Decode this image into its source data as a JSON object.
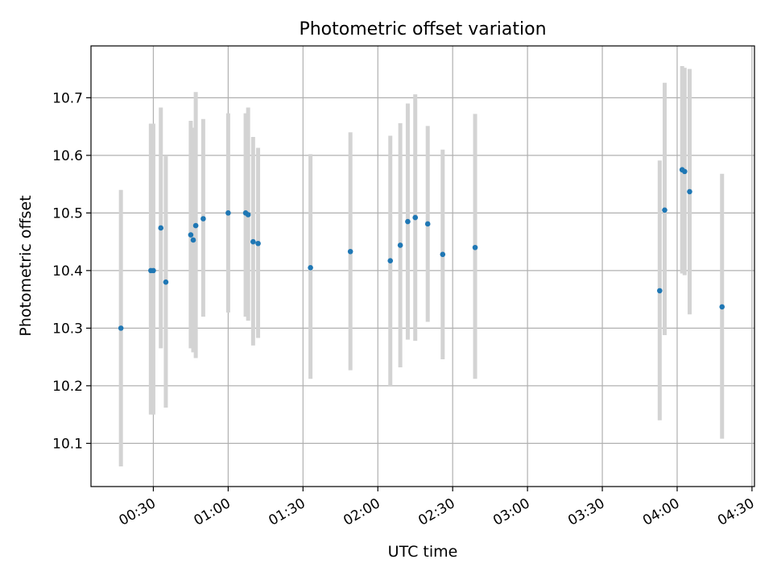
{
  "chart_data": {
    "type": "scatter",
    "title": "Photometric offset variation",
    "xlabel": "UTC time",
    "ylabel": "Photometric offset",
    "x_unit": "UTC",
    "xlim": [
      "00:05",
      "04:31"
    ],
    "ylim": [
      10.025,
      10.79
    ],
    "grid": true,
    "x_ticks": [
      "00:30",
      "01:00",
      "01:30",
      "02:00",
      "02:30",
      "03:00",
      "03:30",
      "04:00",
      "04:30"
    ],
    "y_ticks": [
      10.1,
      10.2,
      10.3,
      10.4,
      10.5,
      10.6,
      10.7
    ],
    "y_tick_labels": [
      "10.1",
      "10.2",
      "10.3",
      "10.4",
      "10.5",
      "10.6",
      "10.7"
    ],
    "marker_color": "#1f77b4",
    "errorbar_color": "#d3d3d3",
    "points": [
      {
        "x": "00:17",
        "y": 10.3,
        "low": 10.06,
        "high": 10.54
      },
      {
        "x": "00:29",
        "y": 10.4,
        "low": 10.15,
        "high": 10.655
      },
      {
        "x": "00:30",
        "y": 10.4,
        "low": 10.15,
        "high": 10.655
      },
      {
        "x": "00:33",
        "y": 10.474,
        "low": 10.265,
        "high": 10.683
      },
      {
        "x": "00:35",
        "y": 10.38,
        "low": 10.162,
        "high": 10.6
      },
      {
        "x": "00:45",
        "y": 10.462,
        "low": 10.265,
        "high": 10.66
      },
      {
        "x": "00:46",
        "y": 10.453,
        "low": 10.258,
        "high": 10.648
      },
      {
        "x": "00:47",
        "y": 10.478,
        "low": 10.248,
        "high": 10.71
      },
      {
        "x": "00:50",
        "y": 10.49,
        "low": 10.32,
        "high": 10.663
      },
      {
        "x": "01:00",
        "y": 10.5,
        "low": 10.327,
        "high": 10.673
      },
      {
        "x": "01:07",
        "y": 10.5,
        "low": 10.32,
        "high": 10.673
      },
      {
        "x": "01:08",
        "y": 10.497,
        "low": 10.313,
        "high": 10.683
      },
      {
        "x": "01:10",
        "y": 10.45,
        "low": 10.27,
        "high": 10.632
      },
      {
        "x": "01:12",
        "y": 10.447,
        "low": 10.283,
        "high": 10.613
      },
      {
        "x": "01:33",
        "y": 10.405,
        "low": 10.212,
        "high": 10.602
      },
      {
        "x": "01:49",
        "y": 10.433,
        "low": 10.227,
        "high": 10.64
      },
      {
        "x": "02:05",
        "y": 10.417,
        "low": 10.2,
        "high": 10.634
      },
      {
        "x": "02:09",
        "y": 10.444,
        "low": 10.232,
        "high": 10.656
      },
      {
        "x": "02:12",
        "y": 10.485,
        "low": 10.28,
        "high": 10.69
      },
      {
        "x": "02:15",
        "y": 10.492,
        "low": 10.278,
        "high": 10.706
      },
      {
        "x": "02:20",
        "y": 10.481,
        "low": 10.311,
        "high": 10.651
      },
      {
        "x": "02:26",
        "y": 10.428,
        "low": 10.246,
        "high": 10.61
      },
      {
        "x": "02:39",
        "y": 10.44,
        "low": 10.212,
        "high": 10.672
      },
      {
        "x": "03:53",
        "y": 10.365,
        "low": 10.14,
        "high": 10.591
      },
      {
        "x": "03:55",
        "y": 10.505,
        "low": 10.288,
        "high": 10.726
      },
      {
        "x": "04:02",
        "y": 10.575,
        "low": 10.395,
        "high": 10.755
      },
      {
        "x": "04:03",
        "y": 10.572,
        "low": 10.392,
        "high": 10.752
      },
      {
        "x": "04:05",
        "y": 10.537,
        "low": 10.324,
        "high": 10.75
      },
      {
        "x": "04:18",
        "y": 10.337,
        "low": 10.108,
        "high": 10.568
      }
    ]
  }
}
